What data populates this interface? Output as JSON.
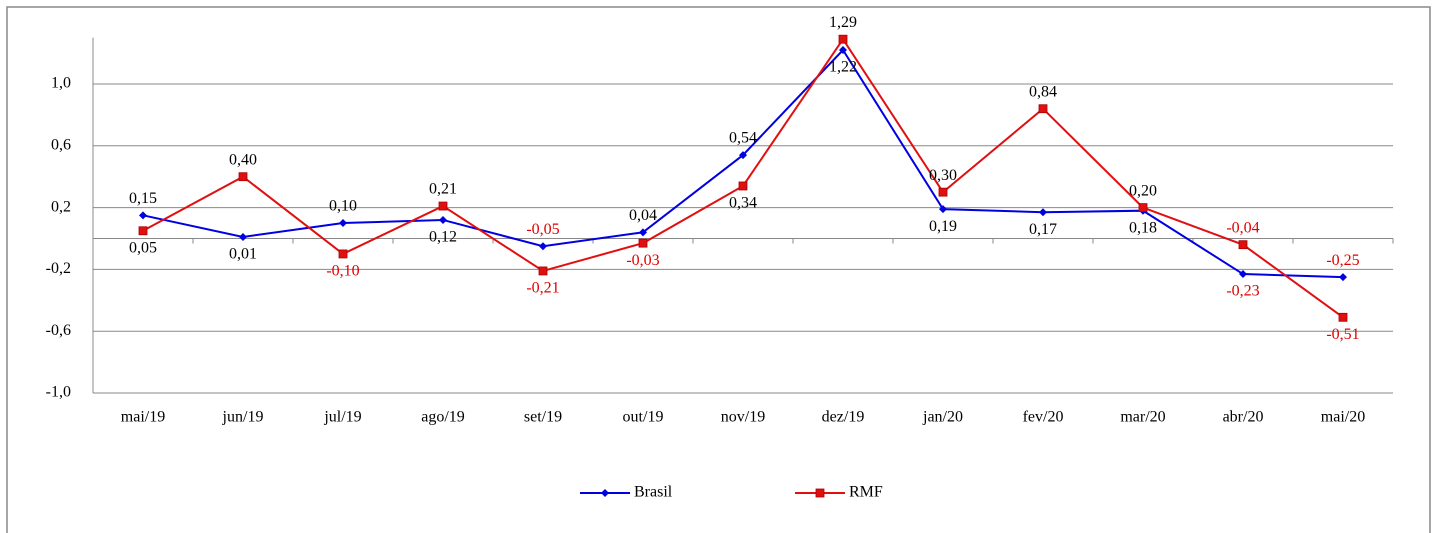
{
  "chart_data": {
    "type": "line",
    "categories": [
      "mai/19",
      "jun/19",
      "jul/19",
      "ago/19",
      "set/19",
      "out/19",
      "nov/19",
      "dez/19",
      "jan/20",
      "fev/20",
      "mar/20",
      "abr/20",
      "mai/20"
    ],
    "series": [
      {
        "name": "Brasil",
        "color": "#0000e0",
        "marker": "diamond",
        "values": [
          0.15,
          0.01,
          0.1,
          0.12,
          -0.05,
          0.04,
          0.54,
          1.22,
          0.19,
          0.17,
          0.18,
          -0.23,
          -0.25
        ],
        "value_labels": [
          "0,15",
          "0,01",
          "0,10",
          "0,12",
          "-0,05",
          "0,04",
          "0,54",
          "1,22",
          "0,19",
          "0,17",
          "0,18",
          "-0,23",
          "-0,25"
        ]
      },
      {
        "name": "RMF",
        "color": "#e01010",
        "marker": "square",
        "values": [
          0.05,
          0.4,
          -0.1,
          0.21,
          -0.21,
          -0.03,
          0.34,
          1.29,
          0.3,
          0.84,
          0.2,
          -0.04,
          -0.51
        ],
        "value_labels": [
          "0,05",
          "0,40",
          "-0,10",
          "0,21",
          "-0,21",
          "-0,03",
          "0,34",
          "1,29",
          "0,30",
          "0,84",
          "0,20",
          "-0,04",
          "-0,51"
        ]
      }
    ],
    "ylim": [
      -1.0,
      1.3
    ],
    "yticks": [
      {
        "value": -1.0,
        "label": "-1,0"
      },
      {
        "value": -0.6,
        "label": "-0,6"
      },
      {
        "value": -0.2,
        "label": "-0,2"
      },
      {
        "value": 0.2,
        "label": "0,2"
      },
      {
        "value": 0.6,
        "label": "0,6"
      },
      {
        "value": 1.0,
        "label": "1,0"
      }
    ],
    "grid": true,
    "legend": "bottom",
    "negative_label_color": "#e00000"
  }
}
